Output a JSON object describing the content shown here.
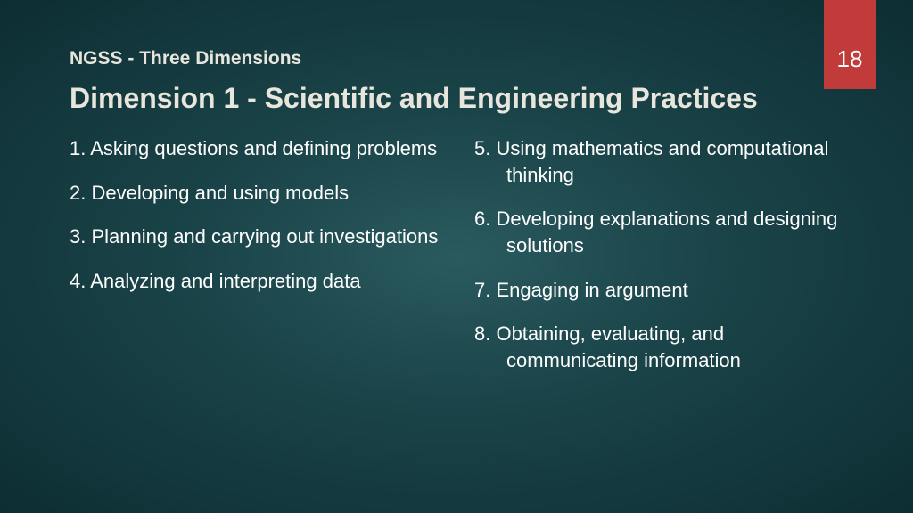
{
  "pageNumber": "18",
  "headerSmall": "NGSS - Three Dimensions",
  "title": "Dimension 1 - Scientific and Engineering Practices",
  "leftColumn": [
    "1. Asking questions and defining problems",
    "2. Developing and using models",
    "3. Planning and carrying out investigations",
    "4. Analyzing and interpreting data"
  ],
  "rightColumn": [
    "5.  Using mathematics and computational thinking",
    "6.  Developing explanations and designing solutions",
    "7.  Engaging in argument",
    "8.  Obtaining, evaluating, and communicating information"
  ],
  "colors": {
    "background_inner": "#2a5a5f",
    "background_outer": "#0d2e33",
    "tab_color": "#c23b3b",
    "title_color": "#e8e6dc",
    "text_color": "#ffffff"
  },
  "typography": {
    "header_small_fontsize": 21,
    "title_fontsize": 32,
    "body_fontsize": 22,
    "pagenum_fontsize": 26
  }
}
